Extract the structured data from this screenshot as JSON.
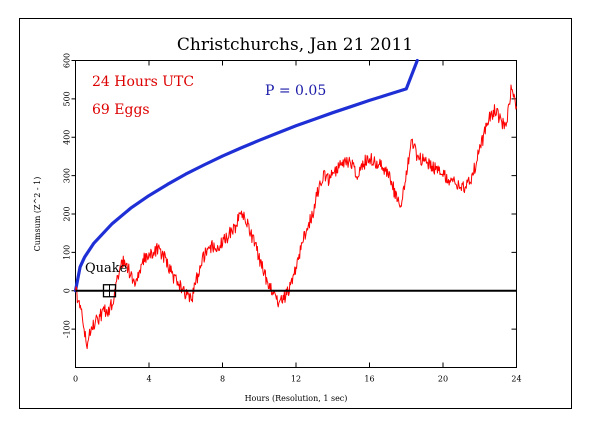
{
  "chart_data": {
    "type": "line",
    "title": "Christchurchs, Jan 21 2011",
    "xlabel": "Hours (Resolution, 1 sec)",
    "ylabel": "Cumsum (Z^2 - 1)",
    "xlim": [
      0,
      24
    ],
    "ylim": [
      -200,
      600
    ],
    "x_ticks": [
      "0",
      "4",
      "8",
      "12",
      "16",
      "20",
      "24"
    ],
    "x_tick_values": [
      0,
      4,
      8,
      12,
      16,
      20,
      24
    ],
    "y_ticks": [
      "-100",
      "0",
      "100",
      "200",
      "300",
      "400",
      "500",
      "600"
    ],
    "y_tick_values": [
      -100,
      0,
      100,
      200,
      300,
      400,
      500,
      600
    ],
    "grid": false,
    "annotations": {
      "period": "24 Hours UTC",
      "eggs": "69 Eggs",
      "probability": "P = 0.05",
      "event": "Quake"
    },
    "event_marker": {
      "x": 1.85,
      "y": 0
    },
    "colors": {
      "cumsum": "#ff0000",
      "envelope": "#1f2fd6",
      "baseline": "#000000",
      "annotation_red": "#dd0000",
      "annotation_blue": "#1a1aa8"
    },
    "series": [
      {
        "key": "envelope",
        "style": "curve",
        "x": [
          0,
          0.25,
          0.5,
          1,
          2,
          3,
          4,
          5,
          6,
          7,
          8,
          9,
          10,
          11,
          12,
          13,
          14,
          15,
          16,
          17,
          18,
          18.6
        ],
        "values": [
          0,
          62,
          88,
          124,
          175,
          215,
          248,
          277,
          304,
          328,
          351,
          372,
          392,
          411,
          430,
          447,
          464,
          480,
          496,
          511,
          526,
          600
        ]
      },
      {
        "key": "cumsum",
        "style": "noisy",
        "x": [
          0,
          0.3,
          0.6,
          0.9,
          1.2,
          1.5,
          1.8,
          2.1,
          2.4,
          2.7,
          3.0,
          3.3,
          3.6,
          3.9,
          4.2,
          4.5,
          4.8,
          5.1,
          5.4,
          5.7,
          6.0,
          6.3,
          6.6,
          6.9,
          7.2,
          7.5,
          7.8,
          8.1,
          8.4,
          8.7,
          9.0,
          9.3,
          9.6,
          9.9,
          10.2,
          10.5,
          10.8,
          11.1,
          11.4,
          11.7,
          12.0,
          12.3,
          12.6,
          12.9,
          13.2,
          13.5,
          13.8,
          14.1,
          14.4,
          14.7,
          15.0,
          15.3,
          15.6,
          15.9,
          16.2,
          16.5,
          16.8,
          17.1,
          17.4,
          17.7,
          18.0,
          18.3,
          18.6,
          18.9,
          19.2,
          19.5,
          19.8,
          20.1,
          20.4,
          20.7,
          21.0,
          21.3,
          21.6,
          21.9,
          22.2,
          22.5,
          22.8,
          23.1,
          23.4,
          23.7,
          24.0
        ],
        "values": [
          0,
          -45,
          -140,
          -95,
          -75,
          -55,
          -50,
          -20,
          60,
          80,
          40,
          20,
          70,
          95,
          100,
          110,
          90,
          60,
          30,
          10,
          -10,
          -25,
          30,
          80,
          110,
          115,
          120,
          130,
          150,
          165,
          210,
          180,
          140,
          100,
          55,
          15,
          -10,
          -30,
          -15,
          10,
          60,
          120,
          160,
          200,
          260,
          300,
          290,
          310,
          330,
          340,
          330,
          305,
          320,
          350,
          340,
          330,
          320,
          300,
          250,
          220,
          310,
          390,
          350,
          340,
          330,
          320,
          310,
          300,
          290,
          280,
          270,
          275,
          300,
          350,
          400,
          450,
          470,
          450,
          420,
          520,
          480
        ]
      }
    ]
  }
}
